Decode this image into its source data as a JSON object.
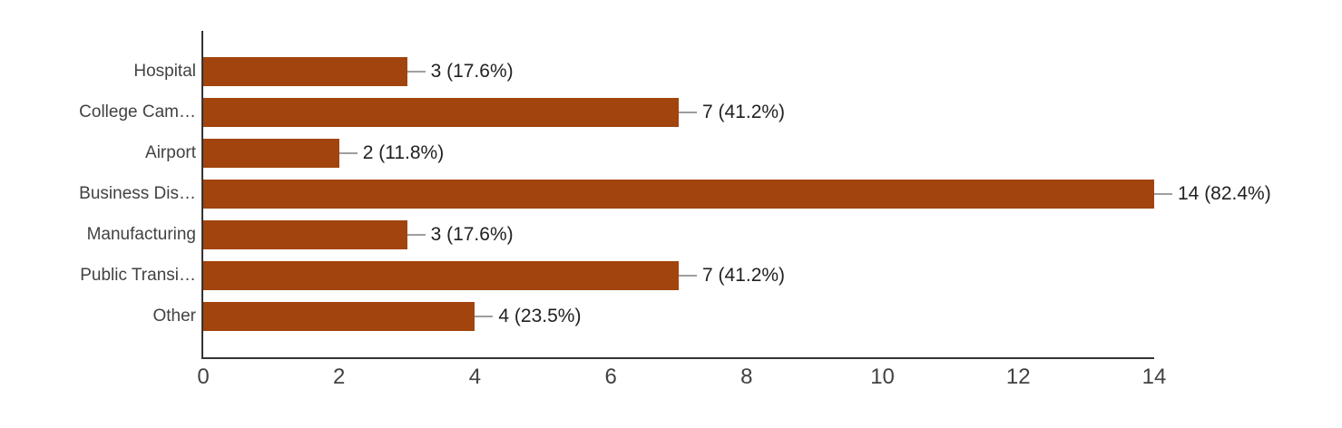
{
  "chart_data": {
    "type": "bar",
    "orientation": "horizontal",
    "title": "",
    "xlabel": "",
    "ylabel": "",
    "legend": "none",
    "grid": false,
    "xlim": [
      0,
      14
    ],
    "x_ticks": [
      "0",
      "2",
      "4",
      "6",
      "8",
      "10",
      "12",
      "14"
    ],
    "categories": [
      "Hospital",
      "College Cam…",
      "Airport",
      "Business Dis…",
      "Manufacturing",
      "Public Transi…",
      "Other"
    ],
    "values": [
      3,
      7,
      2,
      14,
      3,
      7,
      4
    ],
    "percentages": [
      17.6,
      41.2,
      11.8,
      82.4,
      17.6,
      41.2,
      23.5
    ],
    "value_labels": [
      "3 (17.6%)",
      "7 (41.2%)",
      "2 (11.8%)",
      "14 (82.4%)",
      "3 (17.6%)",
      "7 (41.2%)",
      "4 (23.5%)"
    ],
    "colors": {
      "bar": "#A1440D",
      "axis": "#333333",
      "leader_line": "#9E9E9E",
      "category_label": "#424242",
      "value_label": "#212121",
      "tick_label": "#424242",
      "background": "#FFFFFF"
    }
  }
}
